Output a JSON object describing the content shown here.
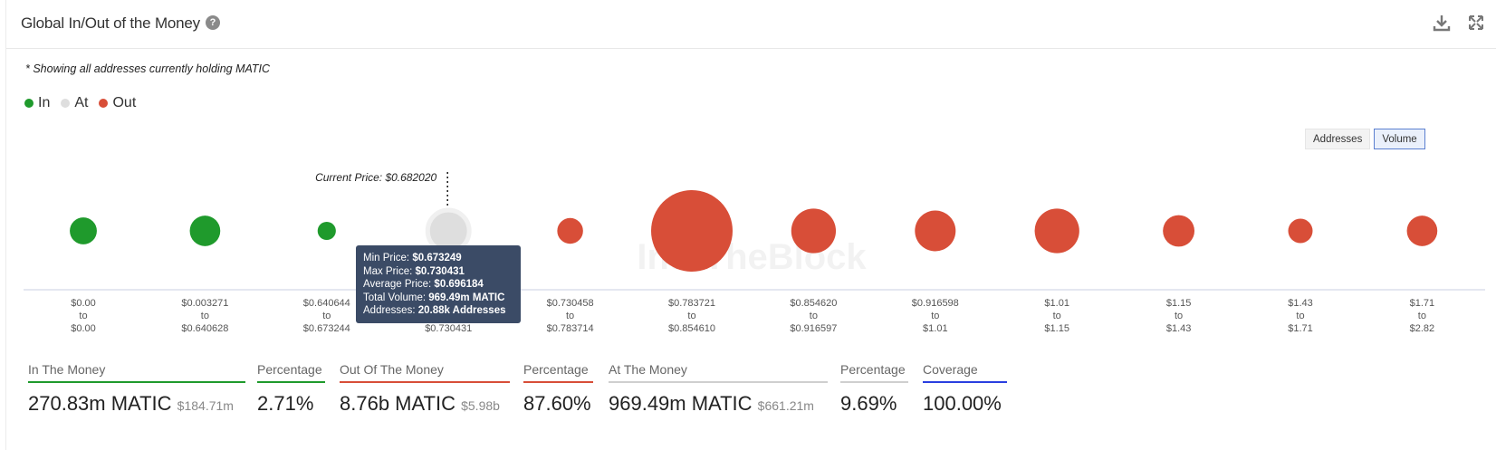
{
  "header": {
    "title": "Global In/Out of the Money",
    "help_glyph": "?",
    "download_icon": "download-icon",
    "expand_icon": "expand-icon"
  },
  "note": "* Showing all addresses currently holding MATIC",
  "legend": [
    {
      "label": "In",
      "color": "#1f9a2c"
    },
    {
      "label": "At",
      "color": "#dedede"
    },
    {
      "label": "Out",
      "color": "#d84e38"
    }
  ],
  "toggle": {
    "addresses_label": "Addresses",
    "volume_label": "Volume",
    "active": "Volume"
  },
  "current_price_label": "Current Price: $0.682020",
  "watermark": "IntoTheBlock",
  "tooltip": {
    "min_label": "Min Price:",
    "min_value": "$0.673249",
    "max_label": "Max Price:",
    "max_value": "$0.730431",
    "avg_label": "Average Price:",
    "avg_value": "$0.696184",
    "vol_label": "Total Volume:",
    "vol_value": "969.49m MATIC",
    "addr_label": "Addresses:",
    "addr_value": "20.88k Addresses"
  },
  "chart_data": {
    "type": "scatter",
    "title": "",
    "xlabel": "",
    "ylabel": "",
    "grid": false,
    "legend_placement": "top-left",
    "current_price": 0.68202,
    "buckets": [
      {
        "from": "$0.00",
        "to": "$0.00",
        "status": "In",
        "volume_rel": 0.11
      },
      {
        "from": "$0.003271",
        "to": "$0.640628",
        "status": "In",
        "volume_rel": 0.14
      },
      {
        "from": "$0.640644",
        "to": "$0.673244",
        "status": "In",
        "volume_rel": 0.05
      },
      {
        "from": "$0.673249",
        "to": "$0.730431",
        "status": "At",
        "volume_rel": 0.26
      },
      {
        "from": "$0.730458",
        "to": "$0.783714",
        "status": "Out",
        "volume_rel": 0.1
      },
      {
        "from": "$0.783721",
        "to": "$0.854610",
        "status": "Out",
        "volume_rel": 1.0
      },
      {
        "from": "$0.854620",
        "to": "$0.916597",
        "status": "Out",
        "volume_rel": 0.3
      },
      {
        "from": "$0.916598",
        "to": "$1.01",
        "status": "Out",
        "volume_rel": 0.25
      },
      {
        "from": "$1.01",
        "to": "$1.15",
        "status": "Out",
        "volume_rel": 0.3
      },
      {
        "from": "$1.15",
        "to": "$1.43",
        "status": "Out",
        "volume_rel": 0.15
      },
      {
        "from": "$1.43",
        "to": "$1.71",
        "status": "Out",
        "volume_rel": 0.09
      },
      {
        "from": "$1.71",
        "to": "$2.82",
        "status": "Out",
        "volume_rel": 0.14
      }
    ],
    "to_word": "to"
  },
  "stats": [
    {
      "label": "In The Money",
      "value": "270.83m MATIC",
      "sub": "$184.71m",
      "color": "#1f9a2c"
    },
    {
      "label": "Percentage",
      "value": "2.71%",
      "sub": "",
      "color": "#1f9a2c"
    },
    {
      "label": "Out Of The Money",
      "value": "8.76b MATIC",
      "sub": "$5.98b",
      "color": "#d84e38"
    },
    {
      "label": "Percentage",
      "value": "87.60%",
      "sub": "",
      "color": "#d84e38"
    },
    {
      "label": "At The Money",
      "value": "969.49m MATIC",
      "sub": "$661.21m",
      "color": "#cfcfcf"
    },
    {
      "label": "Percentage",
      "value": "9.69%",
      "sub": "",
      "color": "#cfcfcf"
    },
    {
      "label": "Coverage",
      "value": "100.00%",
      "sub": "",
      "color": "#2a3fe0"
    }
  ]
}
